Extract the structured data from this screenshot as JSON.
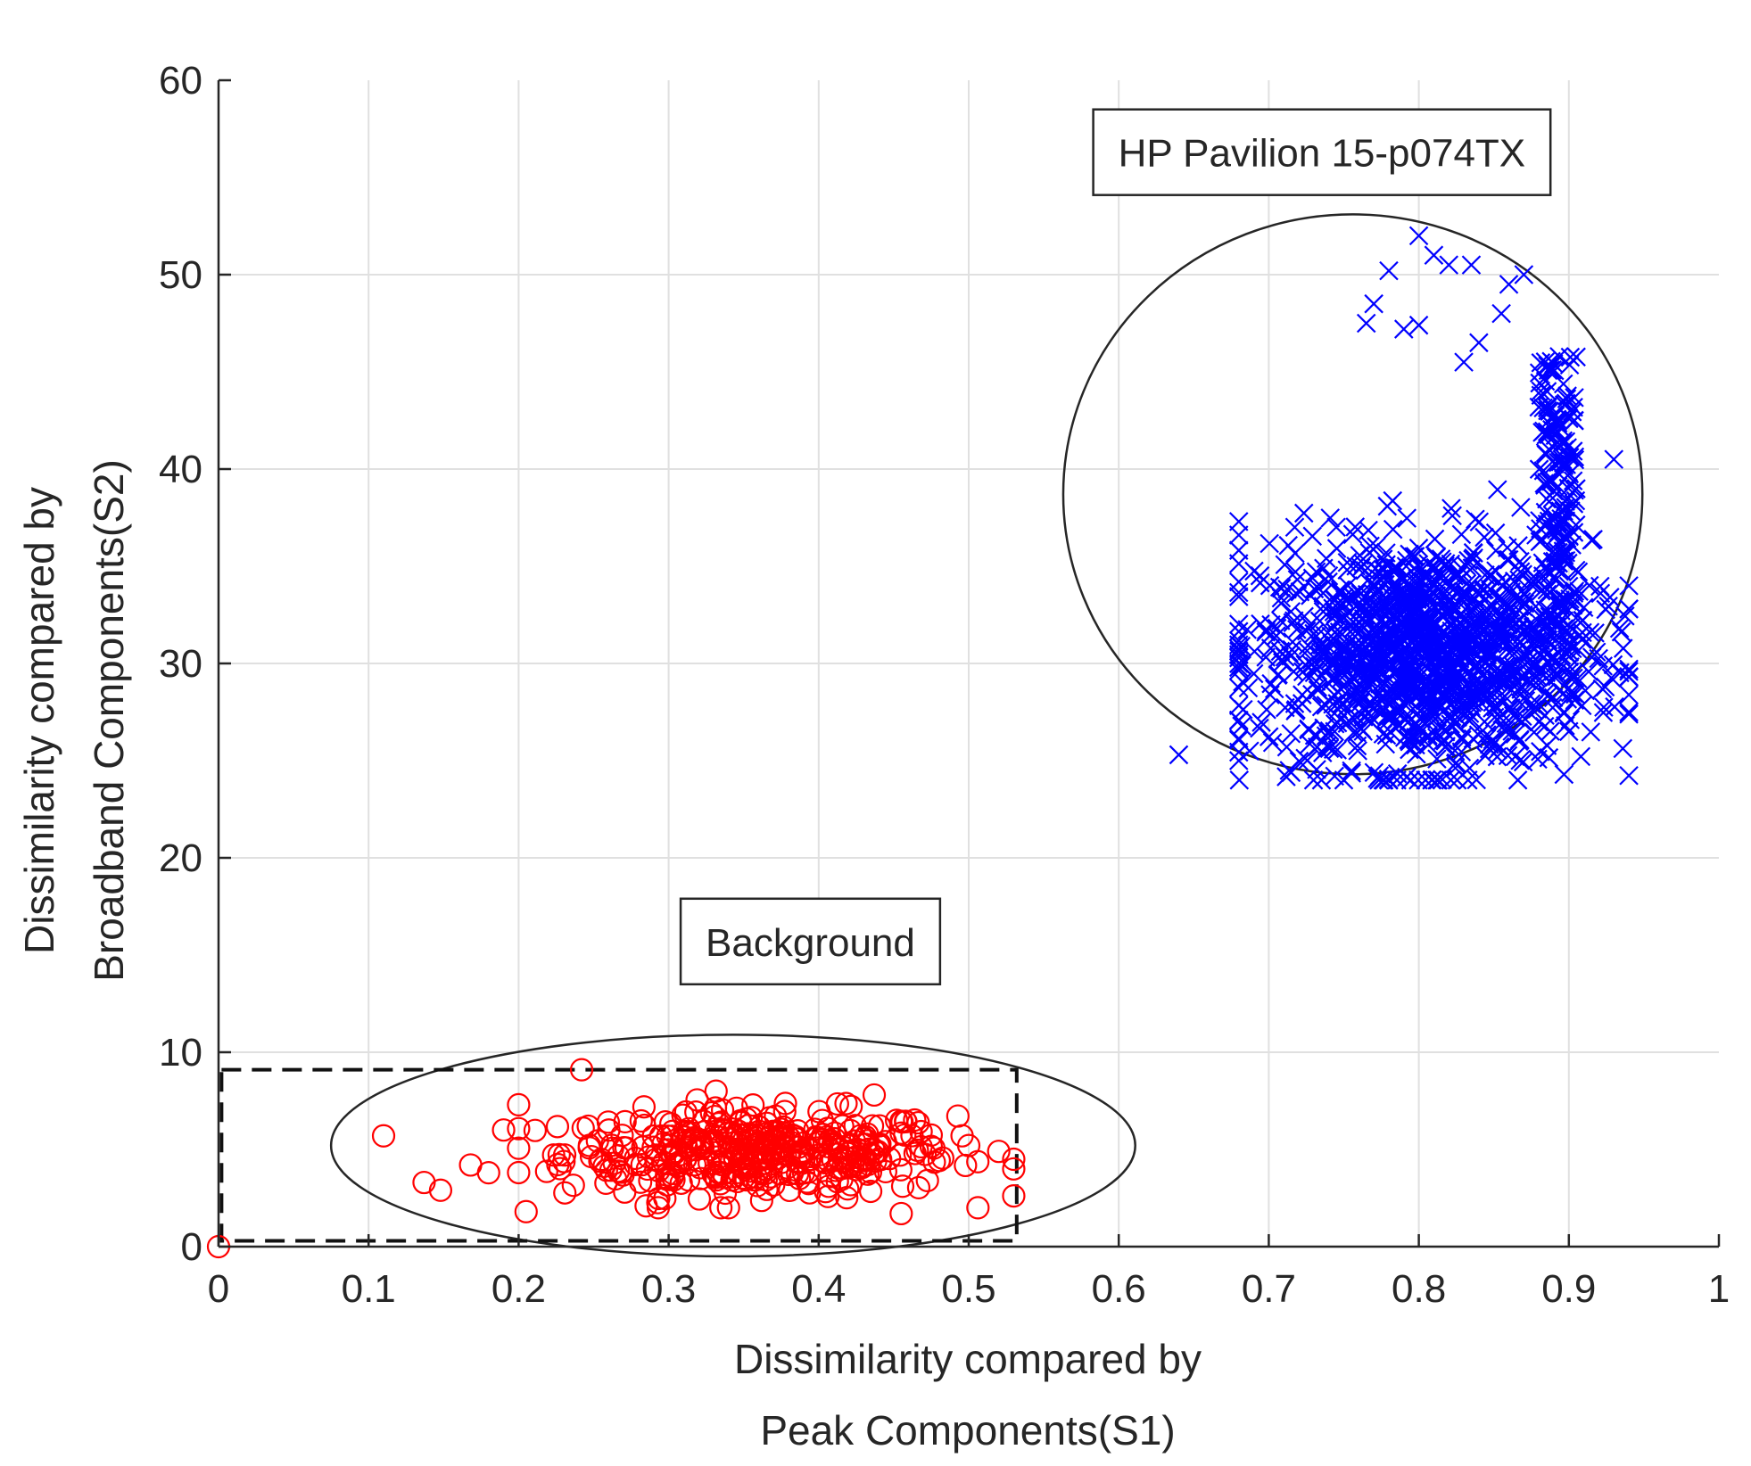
{
  "chart_data": {
    "type": "scatter",
    "title": "",
    "xlabel_lines": [
      "Dissimilarity compared by",
      "Peak Components(S1)"
    ],
    "ylabel_lines": [
      "Dissimilarity compared by",
      "Broadband Components(S2)"
    ],
    "xlim": [
      0,
      1
    ],
    "ylim": [
      0,
      60
    ],
    "xticks": [
      0,
      0.1,
      0.2,
      0.3,
      0.4,
      0.5,
      0.6,
      0.7,
      0.8,
      0.9,
      1
    ],
    "xtick_labels": [
      "0",
      "0.1",
      "0.2",
      "0.3",
      "0.4",
      "0.5",
      "0.6",
      "0.7",
      "0.8",
      "0.9",
      "1"
    ],
    "yticks": [
      0,
      10,
      20,
      30,
      40,
      50,
      60
    ],
    "ytick_labels": [
      "0",
      "10",
      "20",
      "30",
      "40",
      "50",
      "60"
    ],
    "grid": true,
    "colors": {
      "background": "#ff0000",
      "device": "#0000ff",
      "axis": "#262626",
      "grid": "#e0e0e0"
    },
    "series": [
      {
        "name": "Background",
        "marker": "circle",
        "color": "#ff0000",
        "cluster": {
          "center": [
            0.36,
            4.8
          ],
          "spread": [
            0.065,
            1.1
          ],
          "count": 420,
          "xrange": [
            0.2,
            0.53
          ],
          "yrange": [
            2.0,
            8.0
          ]
        },
        "points": [
          [
            0,
            0
          ],
          [
            0.11,
            5.7
          ],
          [
            0.137,
            3.3
          ],
          [
            0.148,
            2.9
          ],
          [
            0.168,
            4.2
          ],
          [
            0.18,
            3.8
          ],
          [
            0.19,
            6.0
          ],
          [
            0.2,
            7.3
          ],
          [
            0.205,
            1.8
          ],
          [
            0.242,
            9.1
          ],
          [
            0.285,
            2.1
          ],
          [
            0.455,
            1.7
          ],
          [
            0.437,
            7.8
          ],
          [
            0.53,
            4.0
          ],
          [
            0.5,
            5.2
          ],
          [
            0.52,
            4.9
          ]
        ]
      },
      {
        "name": "HP Pavilion 15-p074TX",
        "marker": "x",
        "color": "#0000ff",
        "cluster": {
          "center": [
            0.805,
            30.5
          ],
          "spread": [
            0.055,
            2.9
          ],
          "count": 1400,
          "xrange": [
            0.68,
            0.94
          ],
          "yrange": [
            24,
            41
          ]
        },
        "tail": {
          "x": [
            0.88,
            0.905
          ],
          "y": [
            30,
            46
          ],
          "count": 180
        },
        "points": [
          [
            0.64,
            25.3
          ],
          [
            0.68,
            37.3
          ],
          [
            0.765,
            47.5
          ],
          [
            0.77,
            48.5
          ],
          [
            0.78,
            50.2
          ],
          [
            0.8,
            52.0
          ],
          [
            0.81,
            51.0
          ],
          [
            0.82,
            50.5
          ],
          [
            0.835,
            50.5
          ],
          [
            0.86,
            49.5
          ],
          [
            0.87,
            50.0
          ],
          [
            0.855,
            48.0
          ],
          [
            0.84,
            46.5
          ],
          [
            0.83,
            45.5
          ],
          [
            0.8,
            47.4
          ],
          [
            0.79,
            47.2
          ],
          [
            0.93,
            40.5
          ],
          [
            0.94,
            32.8
          ],
          [
            0.75,
            24.0
          ],
          [
            0.78,
            24.0
          ],
          [
            0.9,
            26.5
          ],
          [
            0.68,
            25.0
          ]
        ]
      }
    ],
    "annotations": [
      {
        "text": "HP Pavilion 15-p074TX",
        "type": "textbox",
        "anchor_data": [
          0.583,
          58.5
        ]
      },
      {
        "text": "Background",
        "type": "textbox",
        "anchor_data": [
          0.308,
          17.9
        ]
      },
      {
        "type": "ellipse",
        "center": [
          0.343,
          5.2
        ],
        "radii": [
          0.268,
          5.7
        ]
      },
      {
        "type": "ellipse",
        "center": [
          0.756,
          38.7
        ],
        "radii": [
          0.193,
          14.4
        ]
      },
      {
        "type": "dashed-rectangle",
        "x": [
          0.002,
          0.532
        ],
        "y": [
          0.3,
          9.1
        ]
      }
    ]
  }
}
